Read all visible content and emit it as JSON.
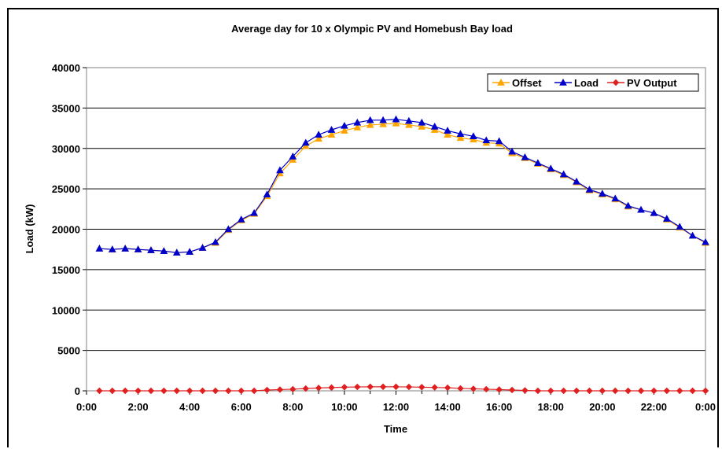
{
  "chart_data": {
    "type": "line",
    "title": "Average day for 10 x Olympic PV and Homebush Bay load",
    "xlabel": "Time",
    "ylabel": "Load (kW)",
    "ylim": [
      0,
      40000
    ],
    "y_ticks": [
      "0",
      "5000",
      "10000",
      "15000",
      "20000",
      "25000",
      "30000",
      "35000",
      "40000"
    ],
    "x_ticks": [
      "0:00",
      "2:00",
      "4:00",
      "6:00",
      "8:00",
      "10:00",
      "12:00",
      "14:00",
      "16:00",
      "18:00",
      "20:00",
      "22:00",
      "0:00"
    ],
    "grid": "horizontal",
    "legend_position": "top-right",
    "x_hours": [
      0.5,
      1,
      1.5,
      2,
      2.5,
      3,
      3.5,
      4,
      4.5,
      5,
      5.5,
      6,
      6.5,
      7,
      7.5,
      8,
      8.5,
      9,
      9.5,
      10,
      10.5,
      11,
      11.5,
      12,
      12.5,
      13,
      13.5,
      14,
      14.5,
      15,
      15.5,
      16,
      16.5,
      17,
      17.5,
      18,
      18.5,
      19,
      19.5,
      20,
      20.5,
      21,
      21.5,
      22,
      22.5,
      23,
      23.5,
      24
    ],
    "series": [
      {
        "name": "Offset",
        "color": "#FFA500",
        "marker": "triangle",
        "values": [
          17600,
          17500,
          17600,
          17500,
          17400,
          17300,
          17100,
          17200,
          17700,
          18300,
          19900,
          21100,
          21900,
          24100,
          26900,
          28600,
          30300,
          31200,
          31700,
          32200,
          32600,
          32900,
          33000,
          33100,
          32900,
          32700,
          32300,
          31700,
          31300,
          31100,
          30700,
          30600,
          29400,
          28800,
          28100,
          27400,
          26700,
          25800,
          24800,
          24300,
          23700,
          22800,
          22400,
          22000,
          21200,
          20200,
          19200,
          18300
        ]
      },
      {
        "name": "Load",
        "color": "#0000CC",
        "marker": "triangle",
        "values": [
          17600,
          17500,
          17600,
          17500,
          17400,
          17300,
          17100,
          17200,
          17700,
          18400,
          20000,
          21200,
          22000,
          24300,
          27300,
          29000,
          30700,
          31700,
          32300,
          32800,
          33200,
          33500,
          33500,
          33600,
          33400,
          33200,
          32700,
          32200,
          31800,
          31500,
          31000,
          30900,
          29600,
          28900,
          28200,
          27500,
          26800,
          25900,
          24900,
          24400,
          23800,
          22900,
          22400,
          22000,
          21300,
          20300,
          19200,
          18400
        ]
      },
      {
        "name": "PV Output",
        "color": "#E02020",
        "marker": "diamond",
        "values": [
          0,
          0,
          0,
          0,
          0,
          0,
          0,
          0,
          0,
          0,
          0,
          0,
          0,
          100,
          150,
          200,
          280,
          350,
          400,
          450,
          480,
          500,
          500,
          500,
          480,
          450,
          420,
          380,
          300,
          250,
          200,
          150,
          100,
          50,
          0,
          0,
          0,
          0,
          0,
          0,
          0,
          0,
          0,
          0,
          0,
          0,
          0,
          0
        ]
      }
    ]
  }
}
